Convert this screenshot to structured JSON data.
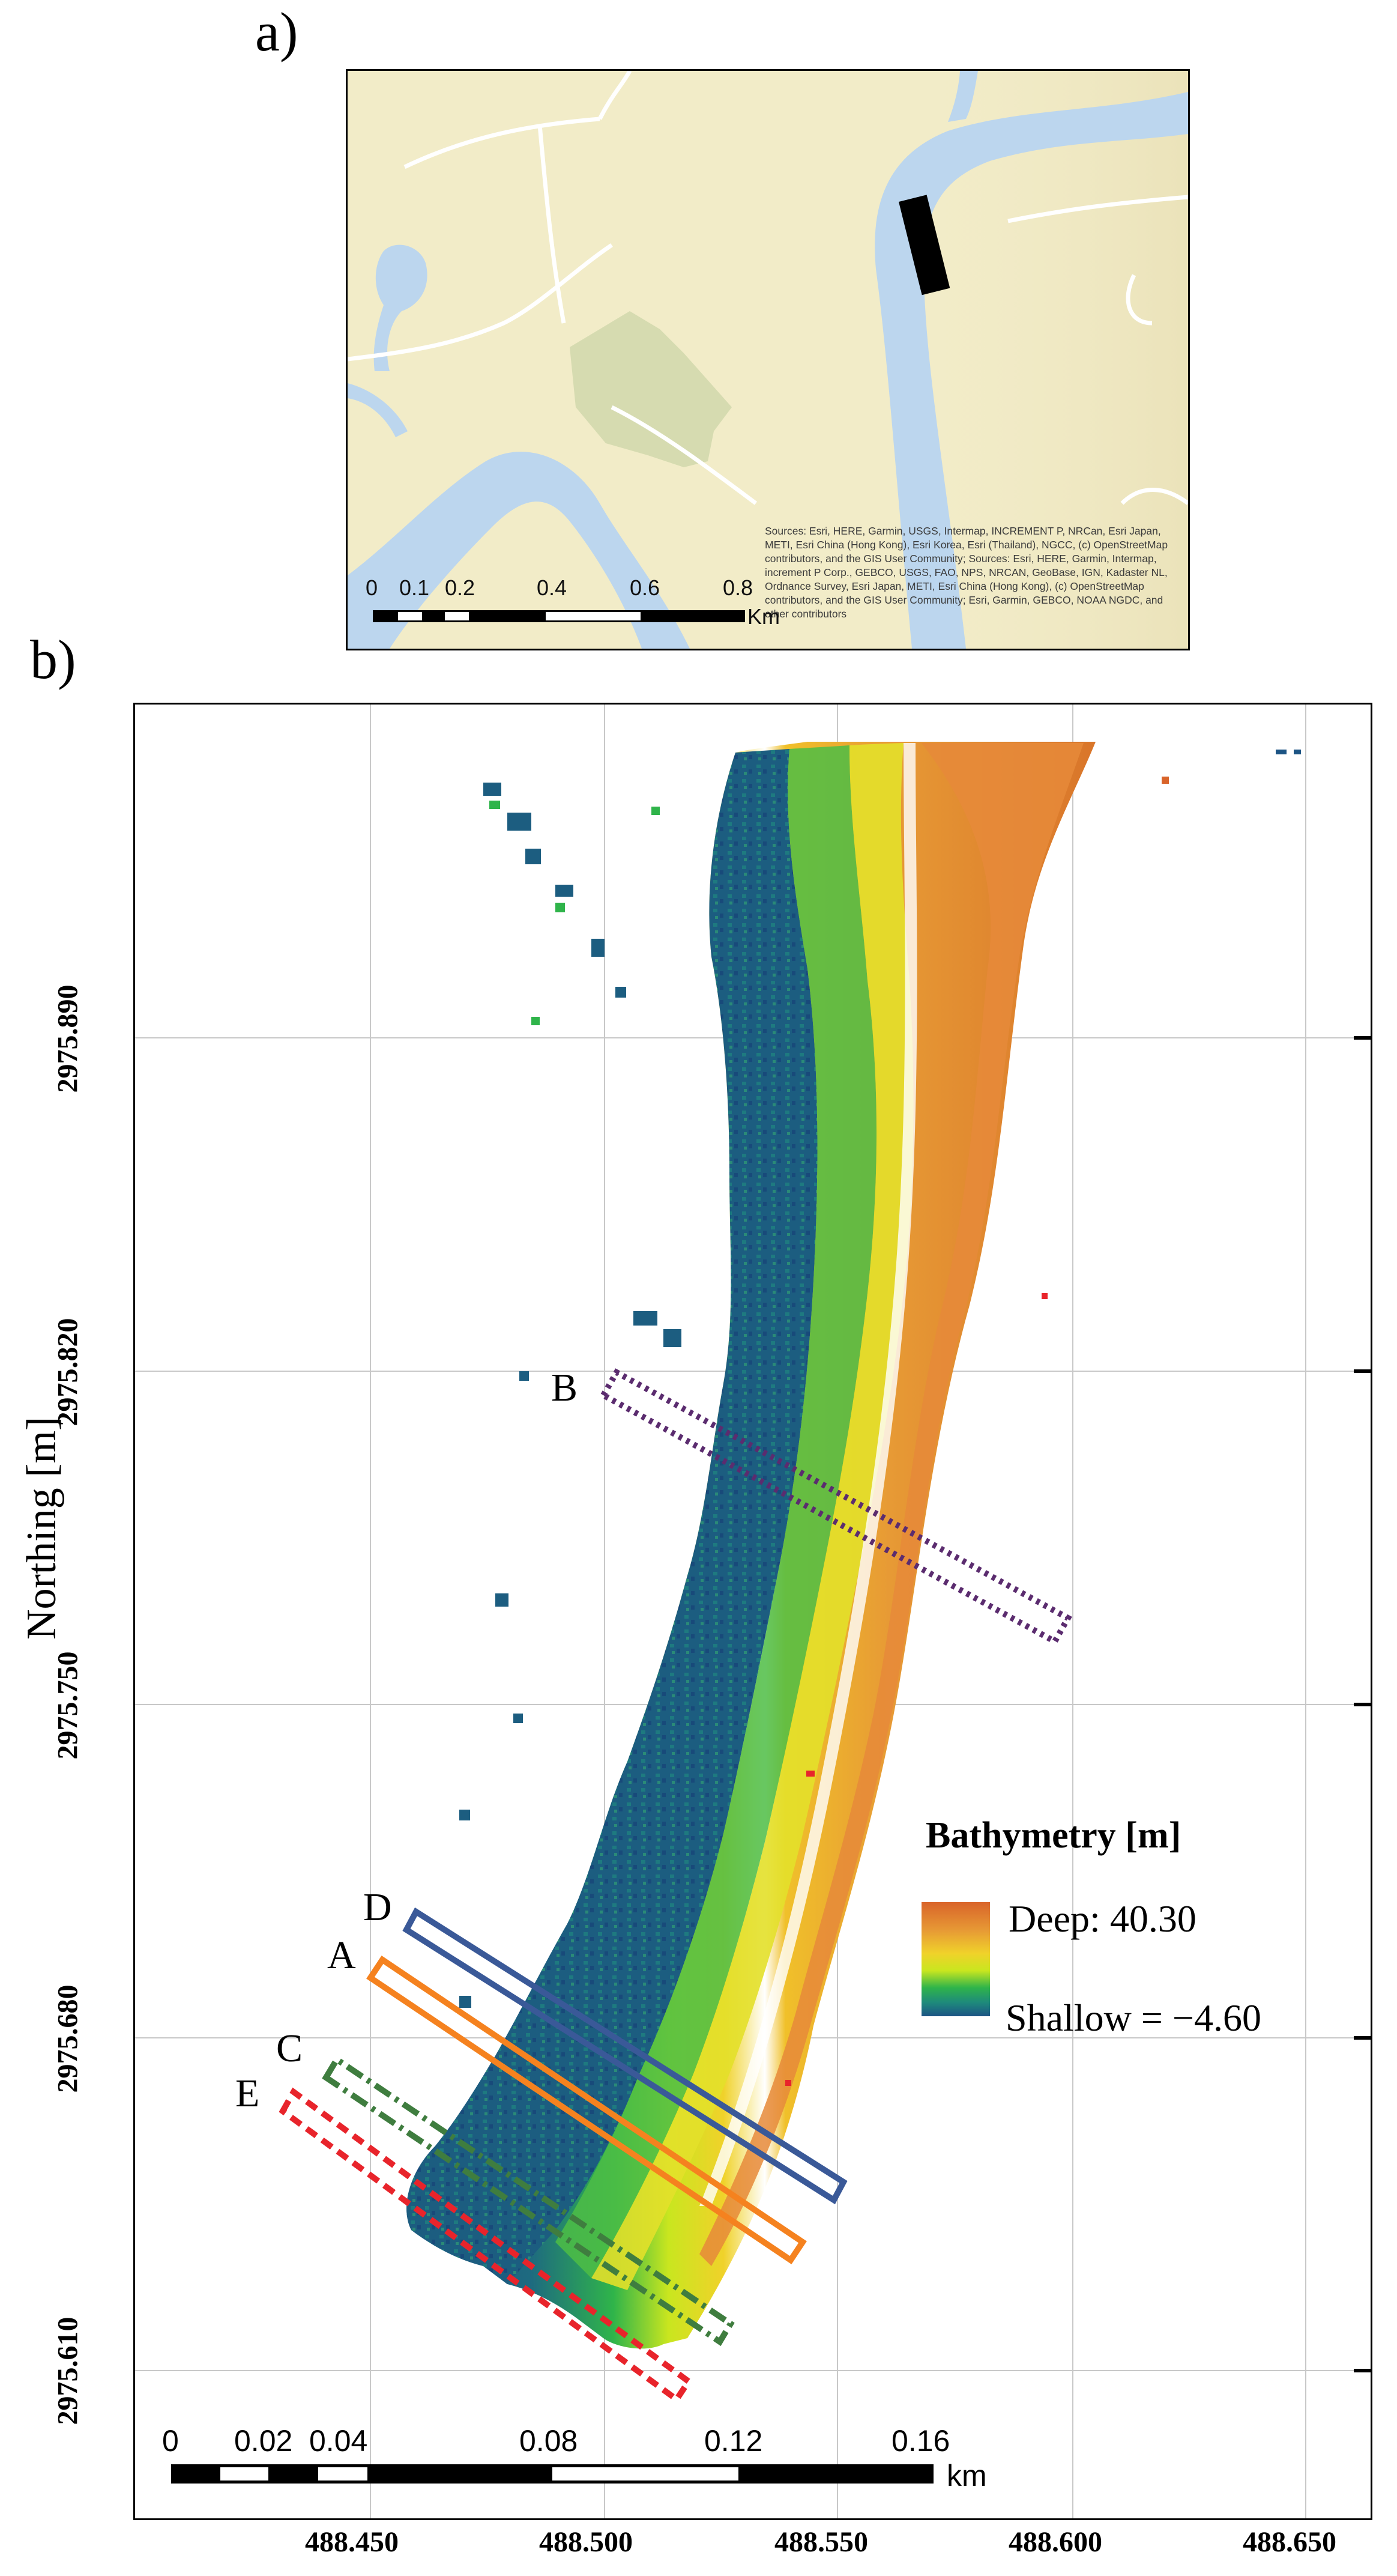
{
  "panel_a": {
    "label": "a)",
    "scale_labels": [
      "0",
      "0.1",
      "0.2",
      "0.4",
      "0.6",
      "0.8"
    ],
    "scale_unit": "Km",
    "sources_text": "Sources: Esri, HERE, Garmin, USGS, Intermap, INCREMENT P, NRCan, Esri Japan, METI, Esri China (Hong Kong), Esri Korea, Esri (Thailand), NGCC, (c) OpenStreetMap contributors, and the GIS User Community; Sources: Esri, HERE, Garmin, Intermap, increment P Corp., GEBCO, USGS, FAO, NPS, NRCAN, GeoBase, IGN, Kadaster NL, Ordnance Survey, Esri Japan, METI, Esri China (Hong Kong), (c) OpenStreetMap contributors, and the GIS User Community; Esri, Garmin, GEBCO, NOAA NGDC, and other contributors",
    "colors": {
      "land": "#f2ecc8",
      "water": "#bcd6ee",
      "park": "#d6dbb0",
      "marker": "#000000"
    }
  },
  "panel_b": {
    "label": "b)",
    "y_axis_title": "Northing [m]",
    "y_ticks": [
      "2975.890",
      "2975.820",
      "2975.750",
      "2975.680",
      "2975.610"
    ],
    "x_ticks": [
      "488.450",
      "488.500",
      "488.550",
      "488.600",
      "488.650"
    ],
    "legend": {
      "title": "Bathymetry [m]",
      "deep_label": "Deep: 40.30",
      "shallow_label": "Shallow = −4.60",
      "colors": [
        "#d9642a",
        "#e79a35",
        "#f0d22a",
        "#c9e61f",
        "#2fb44a",
        "#1e8a7c",
        "#1c5484"
      ]
    },
    "transects": [
      {
        "id": "A",
        "label": "A",
        "color": "#f5821f",
        "style": "solid"
      },
      {
        "id": "B",
        "label": "B",
        "color": "#5b2c6f",
        "style": "dotted"
      },
      {
        "id": "C",
        "label": "C",
        "color": "#3f7d3f",
        "style": "dash-dot"
      },
      {
        "id": "D",
        "label": "D",
        "color": "#3a5998",
        "style": "solid"
      },
      {
        "id": "E",
        "label": "E",
        "color": "#e8242b",
        "style": "dashed"
      }
    ],
    "scale_labels": [
      "0",
      "0.02",
      "0.04",
      "0.08",
      "0.12",
      "0.16"
    ],
    "scale_unit": "km"
  }
}
